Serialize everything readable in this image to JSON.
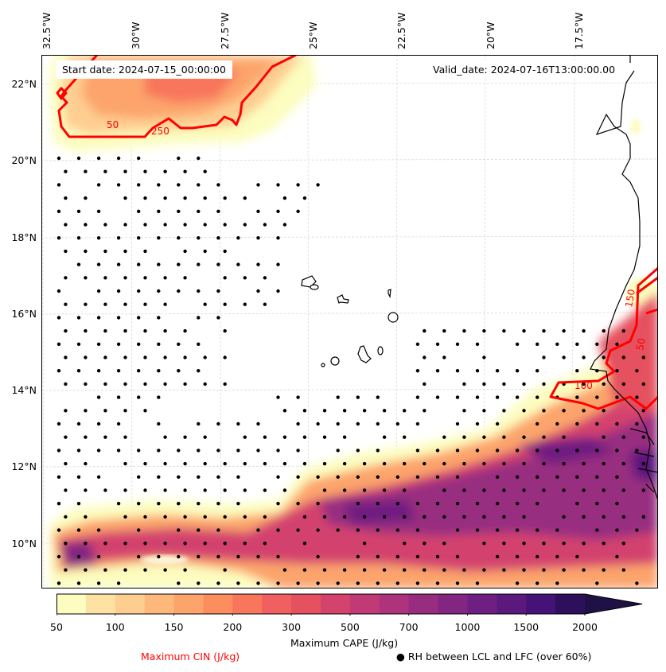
{
  "map": {
    "title_left": "Start date: 2024-07-15_00:00:00",
    "title_right": "Valid_date: 2024-07-16T13:00:00.00",
    "projection_extent": {
      "lon_min": -32.7,
      "lon_max": -15.0,
      "lat_min": 8.9,
      "lat_max": 22.8
    },
    "lon_ticks": [
      "32.5°W",
      "30°W",
      "27.5°W",
      "25°W",
      "22.5°W",
      "20°W",
      "17.5°W"
    ],
    "lat_ticks": [
      "22°N",
      "20°N",
      "18°N",
      "16°N",
      "14°N",
      "12°N",
      "10°N"
    ],
    "gridlines": true,
    "layers": {
      "filled": "Maximum CAPE (J/kg)",
      "contours": "Maximum CIN (J/kg)",
      "stipple": "RH between LCL and LFC (over 60%)"
    },
    "cin_contour_labels": [
      "50",
      "250",
      "100",
      "150",
      "50",
      "100"
    ],
    "features": [
      "West African coastline",
      "Cabo Verde islands"
    ]
  },
  "colorbar": {
    "label": "Maximum CAPE (J/kg)",
    "ticks": [
      "50",
      "100",
      "150",
      "200",
      "300",
      "500",
      "700",
      "1000",
      "1500",
      "2000"
    ],
    "levels": [
      50,
      75,
      100,
      125,
      150,
      175,
      200,
      250,
      300,
      400,
      500,
      600,
      700,
      850,
      1000,
      1250,
      1500,
      1750,
      2000,
      2250
    ],
    "colors": [
      "#fcfdbf",
      "#fde2a3",
      "#fece91",
      "#feb87c",
      "#fca46c",
      "#fb8d5f",
      "#f8765c",
      "#f06060",
      "#e5515f",
      "#d3436e",
      "#c03a76",
      "#ac337c",
      "#982d80",
      "#832681",
      "#6f1f81",
      "#5b197e",
      "#451377",
      "#2e0f5c",
      "#1f1145",
      "#1f1145"
    ],
    "extend": "max"
  },
  "legend": {
    "cin_label": "Maximum CIN (J/kg)",
    "cin_color": "#ff0000",
    "rh_marker": "●",
    "rh_label": "RH between LCL and LFC (over 60%)"
  }
}
